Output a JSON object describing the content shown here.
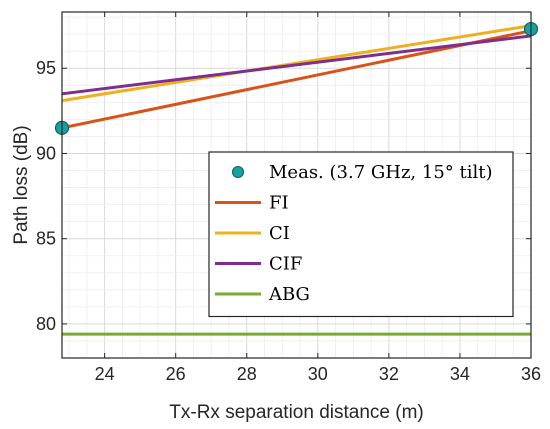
{
  "chart_data": {
    "type": "line",
    "xlabel": "Tx-Rx separation distance (m)",
    "ylabel": "Path loss (dB)",
    "xlim": [
      22.8,
      36.0
    ],
    "ylim": [
      78.0,
      98.3
    ],
    "xticks": [
      24,
      26,
      28,
      30,
      32,
      34,
      36
    ],
    "yticks": [
      80,
      85,
      90,
      95
    ],
    "x_minor_step": 0.5,
    "y_minor_step": 1,
    "grid": true,
    "legend_position": "right",
    "series": [
      {
        "name": "Meas. (3.7 GHz, 15° tilt)",
        "kind": "scatter",
        "color": "#17a2a2",
        "points": [
          {
            "x": 22.8,
            "y": 91.5
          },
          {
            "x": 36.0,
            "y": 97.3
          }
        ]
      },
      {
        "name": "FI",
        "kind": "line",
        "color": "#d95319",
        "points": [
          {
            "x": 22.8,
            "y": 91.5
          },
          {
            "x": 36.0,
            "y": 97.2
          }
        ]
      },
      {
        "name": "CI",
        "kind": "line",
        "color": "#edb120",
        "points": [
          {
            "x": 22.8,
            "y": 93.1
          },
          {
            "x": 36.0,
            "y": 97.5
          }
        ]
      },
      {
        "name": "CIF",
        "kind": "line",
        "color": "#7e2f8e",
        "points": [
          {
            "x": 22.8,
            "y": 93.5
          },
          {
            "x": 36.0,
            "y": 96.9
          }
        ]
      },
      {
        "name": "ABG",
        "kind": "line",
        "color": "#77ac30",
        "points": [
          {
            "x": 22.8,
            "y": 79.4
          },
          {
            "x": 36.0,
            "y": 79.4
          }
        ]
      }
    ]
  }
}
